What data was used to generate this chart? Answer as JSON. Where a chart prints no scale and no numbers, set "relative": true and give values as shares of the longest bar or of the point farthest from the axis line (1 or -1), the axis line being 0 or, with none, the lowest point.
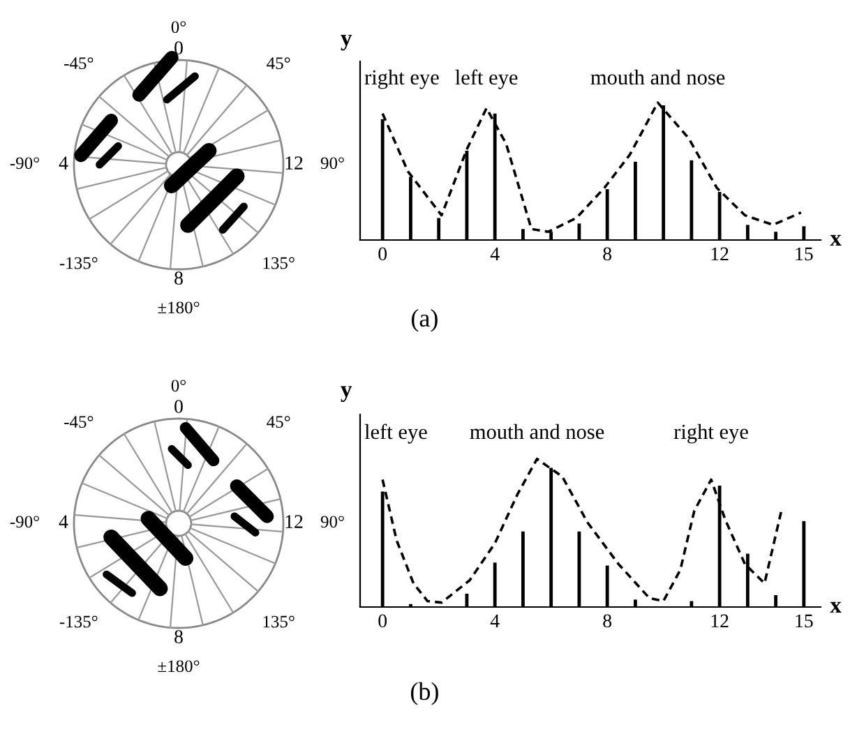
{
  "chart_data": [
    {
      "type": "other",
      "annotations": [
        "0°",
        "45°",
        "90°",
        "135°",
        "±180°",
        "-135°",
        "-90°",
        "-45°",
        "0",
        "12",
        "8",
        "4"
      ]
    },
    {
      "type": "bar",
      "relative": true,
      "xlabel": "x",
      "ylabel": "y",
      "xlim": [
        -0.8,
        15.6
      ],
      "xticks": [
        0,
        4,
        8,
        12,
        15
      ],
      "grid": false,
      "legend": false,
      "series": [
        {
          "type": "bar",
          "color": "#000000",
          "x": [
            0,
            1,
            2,
            3,
            4,
            5,
            6,
            7,
            8,
            9,
            10,
            11,
            12,
            13,
            14,
            15
          ],
          "values": [
            0.88,
            0.46,
            0.16,
            0.65,
            0.92,
            0.08,
            0.06,
            0.12,
            0.37,
            0.57,
            0.98,
            0.58,
            0.35,
            0.11,
            0.06,
            0.1
          ]
        },
        {
          "type": "line",
          "color": "#000000",
          "line_style": "dashed",
          "x": [
            0,
            0.9,
            2.1,
            3.0,
            3.7,
            4.4,
            5.3,
            5.9,
            6.9,
            7.9,
            8.8,
            9.8,
            10.9,
            11.9,
            12.9,
            13.9,
            14.9
          ],
          "values": [
            0.92,
            0.5,
            0.18,
            0.66,
            0.96,
            0.7,
            0.08,
            0.06,
            0.16,
            0.38,
            0.62,
            1,
            0.74,
            0.38,
            0.18,
            0.11,
            0.2
          ]
        }
      ],
      "annotations": [
        "right eye",
        "left eye",
        "mouth and nose",
        "(a)"
      ]
    },
    {
      "type": "other",
      "annotations": [
        "0°",
        "45°",
        "90°",
        "135°",
        "±180°",
        "-135°",
        "-90°",
        "-45°",
        "0",
        "12",
        "8",
        "4"
      ]
    },
    {
      "type": "bar",
      "relative": true,
      "xlabel": "x",
      "ylabel": "y",
      "xlim": [
        -0.8,
        15.6
      ],
      "xticks": [
        0,
        4,
        8,
        12,
        15
      ],
      "grid": false,
      "legend": false,
      "series": [
        {
          "type": "bar",
          "color": "#000000",
          "x": [
            0,
            1,
            2,
            3,
            4,
            5,
            6,
            7,
            8,
            9,
            10,
            11,
            12,
            13,
            14,
            15
          ],
          "values": [
            0.78,
            0.02,
            0,
            0.09,
            0.3,
            0.51,
            0.94,
            0.51,
            0.28,
            0.05,
            0,
            0.04,
            0.82,
            0.36,
            0.08,
            0.58
          ]
        },
        {
          "type": "line",
          "color": "#000000",
          "line_style": "dashed",
          "x": [
            0,
            0.5,
            1.1,
            1.6,
            2.1,
            3.1,
            4.0,
            4.8,
            5.5,
            6.4,
            7.3,
            8.4,
            9.5,
            10.0,
            10.6,
            11.1,
            11.7,
            12.2,
            12.9,
            13.6,
            14.2
          ],
          "values": [
            0.86,
            0.45,
            0.16,
            0.04,
            0.03,
            0.18,
            0.43,
            0.76,
            1,
            0.88,
            0.57,
            0.29,
            0.06,
            0.04,
            0.25,
            0.65,
            0.86,
            0.59,
            0.29,
            0.16,
            0.65
          ]
        }
      ],
      "annotations": [
        "left eye",
        "mouth and nose",
        "right eye",
        "(b)"
      ]
    }
  ]
}
